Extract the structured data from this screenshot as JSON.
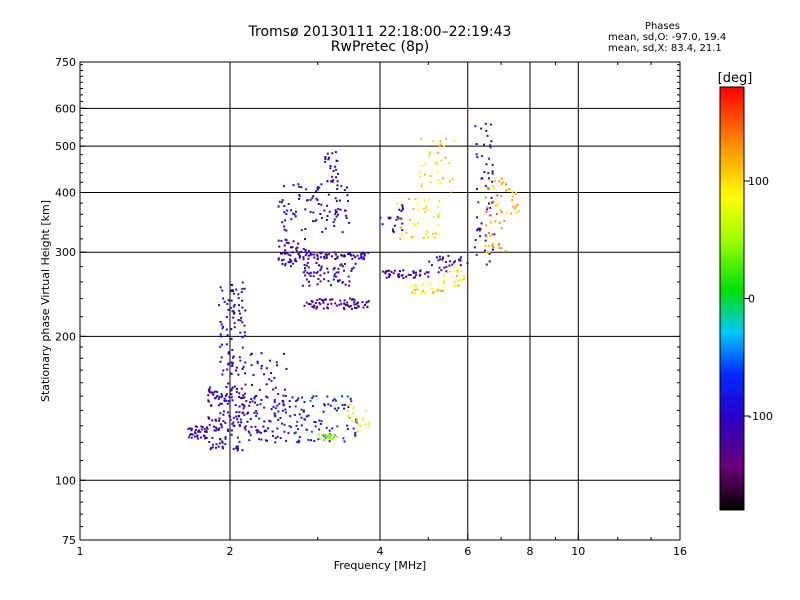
{
  "header": {
    "title": "Tromsø 20130111 22:18:00–22:19:43",
    "subtitle": "RwPretec (8p)"
  },
  "phase_info": {
    "title": "Phases",
    "line_o": "mean, sd,O: -97.0, 19.4",
    "line_x": "mean, sd,X: 83.4, 21.1"
  },
  "colorbar": {
    "label": "[deg]",
    "ticks": [
      "100",
      "0",
      "-100"
    ],
    "tick_values": [
      100,
      0,
      -100
    ],
    "range": [
      -180,
      180
    ],
    "colormap": "rainbow (black→purple→blue→cyan→green→yellow→red)"
  },
  "chart_data": {
    "type": "scatter",
    "xlabel": "Frequency [MHz]",
    "ylabel": "Stationary phase Virtual Height [km]",
    "xscale": "log",
    "yscale": "log",
    "xlim": [
      1,
      16
    ],
    "ylim": [
      75,
      750
    ],
    "xticks": [
      "1",
      "2",
      "4",
      "6",
      "8",
      "10",
      "16"
    ],
    "xtick_values": [
      1,
      2,
      4,
      6,
      8,
      10,
      16
    ],
    "yticks": [
      "750",
      "600",
      "500",
      "400",
      "300",
      "200",
      "100",
      "75"
    ],
    "ytick_values": [
      750,
      600,
      500,
      400,
      300,
      200,
      100,
      75
    ],
    "x_gridlines": [
      2,
      4,
      6,
      8,
      10
    ],
    "y_gridlines": [
      100,
      200,
      300,
      400,
      500,
      600
    ],
    "grid": true,
    "color_encodes": "phase [deg]",
    "clusters": [
      {
        "x_range": [
          1.65,
          1.8
        ],
        "y_range": [
          122,
          130
        ],
        "phase_mean": -105,
        "count": 35
      },
      {
        "x_range": [
          1.8,
          2.15
        ],
        "y_range": [
          115,
          160
        ],
        "phase_mean": -105,
        "count": 140
      },
      {
        "x_range": [
          1.9,
          2.15
        ],
        "y_range": [
          165,
          260
        ],
        "phase_mean": -100,
        "count": 90
      },
      {
        "x_range": [
          2.1,
          2.5
        ],
        "y_range": [
          120,
          150
        ],
        "phase_mean": -95,
        "count": 70
      },
      {
        "x_range": [
          2.5,
          3.6
        ],
        "y_range": [
          120,
          150
        ],
        "phase_mean": -80,
        "count": 110
      },
      {
        "x_range": [
          3.0,
          3.3
        ],
        "y_range": [
          121,
          125
        ],
        "phase_mean": 40,
        "count": 22
      },
      {
        "x_range": [
          3.4,
          3.8
        ],
        "y_range": [
          125,
          145
        ],
        "phase_mean": 80,
        "count": 18
      },
      {
        "x_range": [
          2.2,
          2.6
        ],
        "y_range": [
          150,
          185
        ],
        "phase_mean": -110,
        "count": 30
      },
      {
        "x_range": [
          2.5,
          2.9
        ],
        "y_range": [
          280,
          320
        ],
        "phase_mean": -105,
        "count": 60
      },
      {
        "x_range": [
          2.8,
          3.8
        ],
        "y_range": [
          228,
          240
        ],
        "phase_mean": -110,
        "count": 70
      },
      {
        "x_range": [
          2.8,
          3.8
        ],
        "y_range": [
          290,
          300
        ],
        "phase_mean": -110,
        "count": 60
      },
      {
        "x_range": [
          2.8,
          3.6
        ],
        "y_range": [
          255,
          285
        ],
        "phase_mean": -105,
        "count": 60
      },
      {
        "x_range": [
          2.5,
          3.5
        ],
        "y_range": [
          330,
          420
        ],
        "phase_mean": -100,
        "count": 90
      },
      {
        "x_range": [
          3.1,
          3.3
        ],
        "y_range": [
          420,
          490
        ],
        "phase_mean": -100,
        "count": 25
      },
      {
        "x_range": [
          4.0,
          5.0
        ],
        "y_range": [
          265,
          275
        ],
        "phase_mean": -110,
        "count": 40
      },
      {
        "x_range": [
          5.0,
          6.0
        ],
        "y_range": [
          272,
          295
        ],
        "phase_mean": -100,
        "count": 30
      },
      {
        "x_range": [
          4.6,
          5.4
        ],
        "y_range": [
          245,
          258
        ],
        "phase_mean": 100,
        "count": 22
      },
      {
        "x_range": [
          5.3,
          5.9
        ],
        "y_range": [
          255,
          275
        ],
        "phase_mean": 100,
        "count": 18
      },
      {
        "x_range": [
          4.3,
          5.3
        ],
        "y_range": [
          320,
          390
        ],
        "phase_mean": 100,
        "count": 45
      },
      {
        "x_range": [
          4.8,
          5.7
        ],
        "y_range": [
          400,
          520
        ],
        "phase_mean": 100,
        "count": 35
      },
      {
        "x_range": [
          4.0,
          4.5
        ],
        "y_range": [
          330,
          380
        ],
        "phase_mean": -100,
        "count": 20
      },
      {
        "x_range": [
          6.2,
          6.8
        ],
        "y_range": [
          280,
          560
        ],
        "phase_mean": -90,
        "count": 55
      },
      {
        "x_range": [
          6.5,
          7.2
        ],
        "y_range": [
          300,
          430
        ],
        "phase_mean": 120,
        "count": 50
      },
      {
        "x_range": [
          7.2,
          7.6
        ],
        "y_range": [
          360,
          410
        ],
        "phase_mean": 120,
        "count": 15
      }
    ]
  }
}
